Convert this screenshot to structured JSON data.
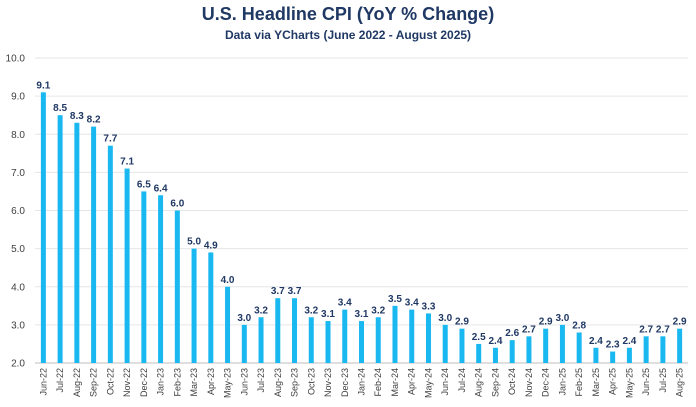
{
  "chart_data": {
    "type": "bar",
    "title": "U.S. Headline CPI (YoY % Change)",
    "subtitle": "Data via YCharts (June 2022 - August 2025)",
    "xlabel": "",
    "ylabel": "",
    "ylim": [
      2.0,
      10.0
    ],
    "yticks": [
      "2.0",
      "3.0",
      "4.0",
      "5.0",
      "6.0",
      "7.0",
      "8.0",
      "9.0",
      "10.0"
    ],
    "grid": true,
    "bar_color": "#1ab8f0",
    "label_color": "#1f3864",
    "categories": [
      "Jun-22",
      "Jul-22",
      "Aug-22",
      "Sep-22",
      "Oct-22",
      "Nov-22",
      "Dec-22",
      "Jan-23",
      "Feb-23",
      "Mar-23",
      "Apr-23",
      "May-23",
      "Jun-23",
      "Jul-23",
      "Aug-23",
      "Sep-23",
      "Oct-23",
      "Nov-23",
      "Dec-23",
      "Jan-24",
      "Feb-24",
      "Mar-24",
      "Apr-24",
      "May-24",
      "Jun-24",
      "Jul-24",
      "Aug-24",
      "Sep-24",
      "Oct-24",
      "Nov-24",
      "Dec-24",
      "Jan-25",
      "Feb-25",
      "Mar-25",
      "Apr-25",
      "May-25",
      "Jun-25",
      "Jul-25",
      "Aug-25"
    ],
    "values": [
      9.1,
      8.5,
      8.3,
      8.2,
      7.7,
      7.1,
      6.5,
      6.4,
      6.0,
      5.0,
      4.9,
      4.0,
      3.0,
      3.2,
      3.7,
      3.7,
      3.2,
      3.1,
      3.4,
      3.1,
      3.2,
      3.5,
      3.4,
      3.3,
      3.0,
      2.9,
      2.5,
      2.4,
      2.6,
      2.7,
      2.9,
      3.0,
      2.8,
      2.4,
      2.3,
      2.4,
      2.7,
      2.7,
      2.9
    ],
    "data_labels": [
      "9.1",
      "8.5",
      "8.3",
      "8.2",
      "7.7",
      "7.1",
      "6.5",
      "6.4",
      "6.0",
      "5.0",
      "4.9",
      "4.0",
      "3.0",
      "3.2",
      "3.7",
      "3.7",
      "3.2",
      "3.1",
      "3.4",
      "3.1",
      "3.2",
      "3.5",
      "3.4",
      "3.3",
      "3.0",
      "2.9",
      "2.5",
      "2.4",
      "2.6",
      "2.7",
      "2.9",
      "3.0",
      "2.8",
      "2.4",
      "2.3",
      "2.4",
      "2.7",
      "2.7",
      "2.9"
    ]
  }
}
